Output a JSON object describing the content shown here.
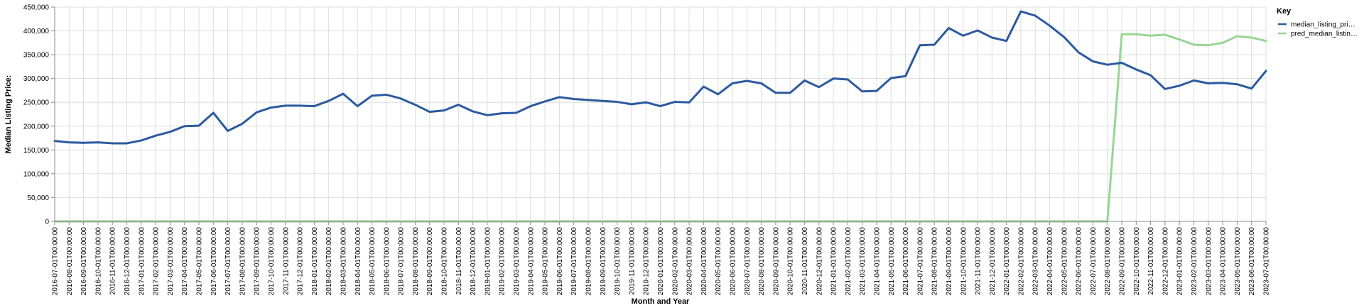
{
  "chart_data": {
    "type": "line",
    "xlabel": "Month and Year",
    "ylabel": "Median Listing Price:",
    "ylim": [
      0,
      450000
    ],
    "yticks": [
      "0",
      "50,000",
      "100,000",
      "150,000",
      "200,000",
      "250,000",
      "300,000",
      "350,000",
      "400,000",
      "450,000"
    ],
    "grid": true,
    "legend_position": "top-right",
    "legend_title": "Key",
    "x": [
      "2016-07-01T00:00:00",
      "2016-08-01T00:00:00",
      "2016-09-01T00:00:00",
      "2016-10-01T00:00:00",
      "2016-11-01T00:00:00",
      "2016-12-01T00:00:00",
      "2017-01-01T00:00:00",
      "2017-02-01T00:00:00",
      "2017-03-01T00:00:00",
      "2017-04-01T00:00:00",
      "2017-05-01T00:00:00",
      "2017-06-01T00:00:00",
      "2017-07-01T00:00:00",
      "2017-08-01T00:00:00",
      "2017-09-01T00:00:00",
      "2017-10-01T00:00:00",
      "2017-11-01T00:00:00",
      "2017-12-01T00:00:00",
      "2018-01-01T00:00:00",
      "2018-02-01T00:00:00",
      "2018-03-01T00:00:00",
      "2018-04-01T00:00:00",
      "2018-05-01T00:00:00",
      "2018-06-01T00:00:00",
      "2018-07-01T00:00:00",
      "2018-08-01T00:00:00",
      "2018-09-01T00:00:00",
      "2018-10-01T00:00:00",
      "2018-11-01T00:00:00",
      "2018-12-01T00:00:00",
      "2019-01-01T00:00:00",
      "2019-02-01T00:00:00",
      "2019-03-01T00:00:00",
      "2019-04-01T00:00:00",
      "2019-05-01T00:00:00",
      "2019-06-01T00:00:00",
      "2019-07-01T00:00:00",
      "2019-08-01T00:00:00",
      "2019-09-01T00:00:00",
      "2019-10-01T00:00:00",
      "2019-11-01T00:00:00",
      "2019-12-01T00:00:00",
      "2020-01-01T00:00:00",
      "2020-02-01T00:00:00",
      "2020-03-01T00:00:00",
      "2020-04-01T00:00:00",
      "2020-05-01T00:00:00",
      "2020-06-01T00:00:00",
      "2020-07-01T00:00:00",
      "2020-08-01T00:00:00",
      "2020-09-01T00:00:00",
      "2020-10-01T00:00:00",
      "2020-11-01T00:00:00",
      "2020-12-01T00:00:00",
      "2021-01-01T00:00:00",
      "2021-02-01T00:00:00",
      "2021-03-01T00:00:00",
      "2021-04-01T00:00:00",
      "2021-05-01T00:00:00",
      "2021-06-01T00:00:00",
      "2021-07-01T00:00:00",
      "2021-08-01T00:00:00",
      "2021-09-01T00:00:00",
      "2021-10-01T00:00:00",
      "2021-11-01T00:00:00",
      "2021-12-01T00:00:00",
      "2022-01-01T00:00:00",
      "2022-02-01T00:00:00",
      "2022-03-01T00:00:00",
      "2022-04-01T00:00:00",
      "2022-05-01T00:00:00",
      "2022-06-01T00:00:00",
      "2022-07-01T00:00:00",
      "2022-08-01T00:00:00",
      "2022-09-01T00:00:00",
      "2022-10-01T00:00:00",
      "2022-11-01T00:00:00",
      "2022-12-01T00:00:00",
      "2023-01-01T00:00:00",
      "2023-02-01T00:00:00",
      "2023-03-01T00:00:00",
      "2023-04-01T00:00:00",
      "2023-05-01T00:00:00",
      "2023-06-01T00:00:00",
      "2023-07-01T00:00:00"
    ],
    "series": [
      {
        "name": "median_listing_pri…",
        "color": "#2c5aa0",
        "values": [
          169000,
          166000,
          165000,
          166000,
          164000,
          164000,
          170000,
          180000,
          188000,
          200000,
          201000,
          228000,
          190000,
          205000,
          229000,
          239000,
          243000,
          243000,
          242000,
          253000,
          268000,
          242000,
          264000,
          266000,
          258000,
          245000,
          230000,
          233000,
          245000,
          231000,
          223000,
          227000,
          228000,
          242000,
          252000,
          261000,
          257000,
          255000,
          253000,
          251000,
          246000,
          250000,
          242000,
          251000,
          250000,
          283000,
          267000,
          290000,
          295000,
          290000,
          270000,
          270000,
          296000,
          282000,
          300000,
          298000,
          273000,
          274000,
          301000,
          305000,
          370000,
          371000,
          406000,
          390000,
          401000,
          386000,
          379000,
          441000,
          432000,
          411000,
          387000,
          355000,
          336000,
          329000,
          333000,
          319000,
          307000,
          278000,
          285000,
          296000,
          290000,
          291000,
          288000,
          279000,
          316000
        ]
      },
      {
        "name": "pred_median_listin…",
        "color": "#98d594",
        "values": [
          0,
          0,
          0,
          0,
          0,
          0,
          0,
          0,
          0,
          0,
          0,
          0,
          0,
          0,
          0,
          0,
          0,
          0,
          0,
          0,
          0,
          0,
          0,
          0,
          0,
          0,
          0,
          0,
          0,
          0,
          0,
          0,
          0,
          0,
          0,
          0,
          0,
          0,
          0,
          0,
          0,
          0,
          0,
          0,
          0,
          0,
          0,
          0,
          0,
          0,
          0,
          0,
          0,
          0,
          0,
          0,
          0,
          0,
          0,
          0,
          0,
          0,
          0,
          0,
          0,
          0,
          0,
          0,
          0,
          0,
          0,
          0,
          0,
          0,
          393000,
          393000,
          390000,
          392000,
          382000,
          371000,
          370000,
          375000,
          389000,
          386000,
          379000
        ]
      }
    ]
  }
}
